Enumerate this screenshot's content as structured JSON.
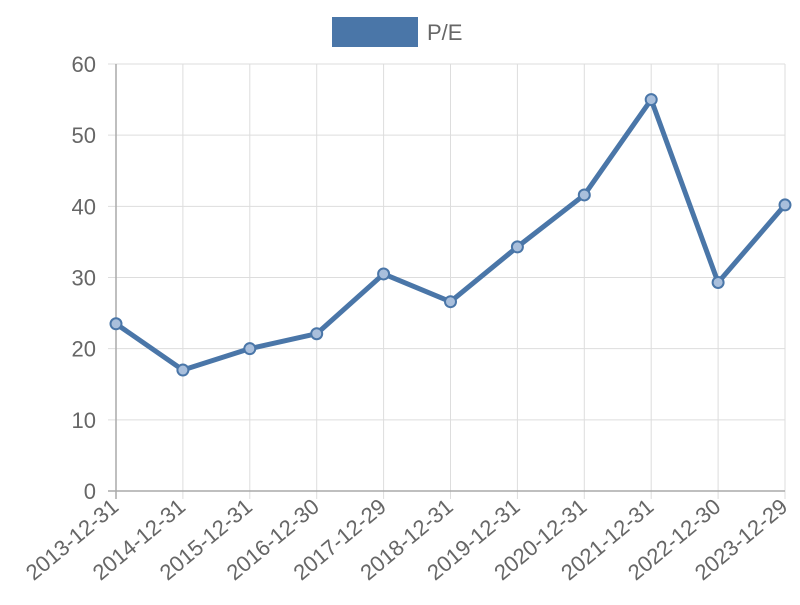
{
  "chart_data": {
    "type": "line",
    "title": "",
    "xlabel": "",
    "ylabel": "",
    "legend": {
      "position": "top",
      "entries": [
        "P/E"
      ]
    },
    "categories": [
      "2013-12-31",
      "2014-12-31",
      "2015-12-31",
      "2016-12-30",
      "2017-12-29",
      "2018-12-31",
      "2019-12-31",
      "2020-12-31",
      "2021-12-31",
      "2022-12-30",
      "2023-12-29"
    ],
    "series": [
      {
        "name": "P/E",
        "color": "#4a76a8",
        "values": [
          23.5,
          17.0,
          20.0,
          22.1,
          30.5,
          26.6,
          34.3,
          41.6,
          55.0,
          29.3,
          40.2
        ]
      }
    ],
    "ylim": [
      0,
      60
    ],
    "yticks": [
      0,
      10,
      20,
      30,
      40,
      50,
      60
    ],
    "grid": true
  }
}
